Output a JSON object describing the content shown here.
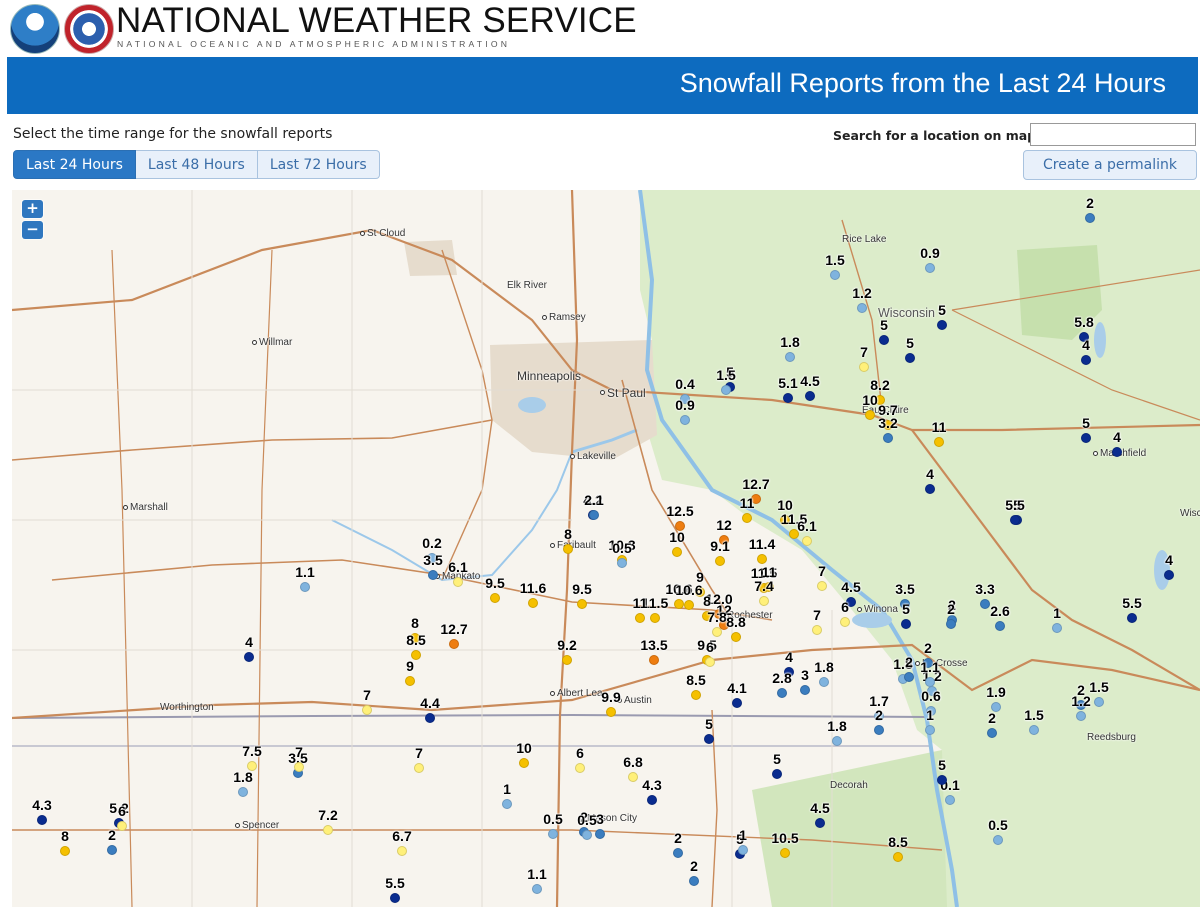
{
  "header": {
    "title": "NATIONAL WEATHER SERVICE",
    "subtitle": "NATIONAL OCEANIC AND ATMOSPHERIC ADMINISTRATION",
    "logos": [
      "noaa-logo",
      "nws-logo"
    ]
  },
  "banner": {
    "title": "Snowfall Reports from the Last 24 Hours"
  },
  "controls": {
    "range_label": "Select the time range for the snowfall reports",
    "tabs": [
      {
        "label": "Last 24 Hours",
        "active": true
      },
      {
        "label": "Last 48 Hours",
        "active": false
      },
      {
        "label": "Last 72 Hours",
        "active": false
      }
    ],
    "search_label": "Search for a location on map:",
    "search_value": "",
    "permalink_label": "Create a permalink"
  },
  "map": {
    "zoom_in": "+",
    "zoom_out": "−",
    "colors": {
      "water": "#a9cde9",
      "land": "#f7f4ee",
      "forest": "#d9ebc4",
      "urban": "#e4dacb",
      "highway": "#c98a5a",
      "border": "#9a9ab0",
      "snow_0_2": "#7fb3de",
      "snow_2_4": "#3b7dbf",
      "snow_4_6": "#0a2c8f",
      "snow_6_8": "#fff07a",
      "snow_8_12": "#f5c000",
      "snow_12_plus": "#ee7d10"
    },
    "places": [
      "St Cloud",
      "Elk River",
      "Ramsey",
      "Willmar",
      "Minneapolis",
      "St Paul",
      "Lakeville",
      "Marshall",
      "Faribault",
      "Mankato",
      "Rochester",
      "Worthington",
      "Albert Lea",
      "Austin",
      "Spencer",
      "Mason City",
      "Decorah",
      "Winona",
      "La Crosse",
      "Eau Claire",
      "Rice Lake",
      "Wisconsin",
      "Marshfield",
      "Reedsburg",
      "Wisc Rapids"
    ],
    "reports": [
      "2",
      "0.9",
      "1.5",
      "1.2",
      "5",
      "5.8",
      "5",
      "4",
      "5",
      "1.8",
      "7",
      "5",
      "5.1",
      "0.4",
      "1.5",
      "4.5",
      "0.9",
      "8.2",
      "10",
      "9.7",
      "3.2",
      "11",
      "5",
      "4",
      "4",
      "12.7",
      "11",
      "10",
      "11.5",
      "6.1",
      "4.2",
      "2.1",
      "12.5",
      "12",
      "5",
      "5.5",
      "10.3",
      "0.5",
      "8",
      "10",
      "9.1",
      "11.4",
      "0.2",
      "3.5",
      "6.1",
      "1.1",
      "9.5",
      "11.6",
      "9.5",
      "9",
      "11.5",
      "11",
      "7",
      "4.5",
      "3.5",
      "3.3",
      "2",
      "2",
      "4",
      "1",
      "10.6",
      "11.5",
      "10.6",
      "12.0",
      "8",
      "11",
      "7.4",
      "7",
      "6",
      "5",
      "12",
      "5.5",
      "2.6",
      "8",
      "8.5",
      "12.7",
      "4",
      "7.8",
      "8.8",
      "9.5",
      "9.2",
      "13.5",
      "1.8",
      "2",
      "2",
      "4",
      "3",
      "1.8",
      "2.8",
      "4.1",
      "6",
      "9",
      "8.5",
      "1.2",
      "1.1",
      "0.6",
      "1.7",
      "1.5",
      "9.9",
      "1.9",
      "2",
      "1.5",
      "1.2",
      "7",
      "4.4",
      "7",
      "5",
      "2",
      "1",
      "1.8",
      "2",
      "7.5",
      "1.8",
      "3.5",
      "7",
      "10",
      "6",
      "6.8",
      "5",
      "4.3",
      "4.3",
      "5.2",
      "6",
      "3",
      "1",
      "1.1",
      "4.5",
      "2",
      "8",
      "8.5",
      "7.2",
      "6.7",
      "0.5",
      "2",
      "0.5",
      "5",
      "2",
      "0.5",
      "2",
      "10.5",
      "1",
      "5.5",
      "0.1",
      "7",
      "1",
      "4",
      "5"
    ]
  }
}
